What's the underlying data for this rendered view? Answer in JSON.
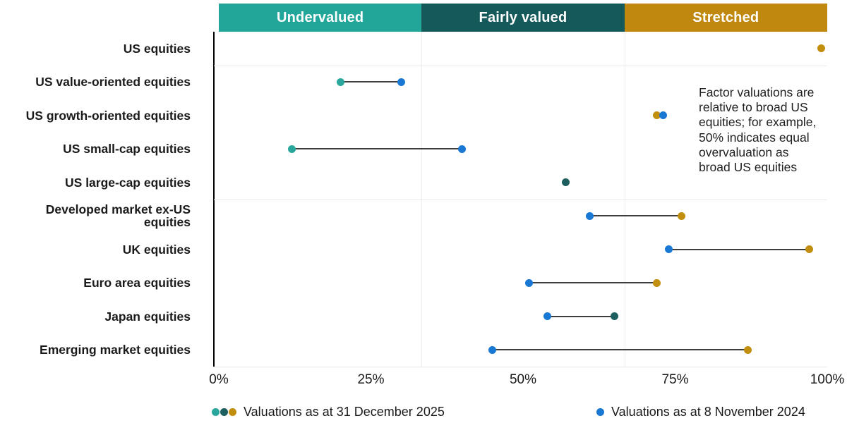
{
  "zones": [
    {
      "label": "Undervalued",
      "color": "#22A69A"
    },
    {
      "label": "Fairly valued",
      "color": "#16595A"
    },
    {
      "label": "Stretched",
      "color": "#C0880E"
    }
  ],
  "chart_data": {
    "type": "dumbbell",
    "x_ticks": [
      "0%",
      "25%",
      "50%",
      "75%",
      "100%"
    ],
    "xlim": [
      0,
      100
    ],
    "zone_boundaries": [
      33.33,
      66.67
    ],
    "group_separators_after": [
      0,
      4
    ],
    "categories": [
      "US equities",
      "US value-oriented equities",
      "US growth-oriented equities",
      "US small-cap equities",
      "US large-cap equities",
      "Developed market ex-US equities",
      "UK equities",
      "Euro area equities",
      "Japan equities",
      "Emerging market equities"
    ],
    "series": [
      {
        "name": "Valuations as at 31 December 2025",
        "values": [
          99,
          20,
          72,
          12,
          57,
          76,
          97,
          72,
          65,
          87
        ],
        "point_colors": [
          "#C28E0E",
          "#2AA79D",
          "#C28E0E",
          "#2AA79D",
          "#1D5F5E",
          "#C28E0E",
          "#C28E0E",
          "#C28E0E",
          "#1D5F5E",
          "#C28E0E"
        ]
      },
      {
        "name": "Valuations as at 8 November 2024",
        "values": [
          null,
          30,
          73,
          40,
          null,
          61,
          74,
          51,
          54,
          45
        ],
        "color": "#1878D4"
      }
    ]
  },
  "annotation": {
    "lines": [
      "Factor valuations are",
      "relative to broad US",
      "equities; for example,",
      "50% indicates equal",
      "overvaluation as",
      "broad US equities"
    ]
  },
  "legend": {
    "items": [
      {
        "label": "Valuations as at 31 December 2025",
        "swatches": [
          "#2AA79D",
          "#1D5F5E",
          "#C28E0E"
        ]
      },
      {
        "label": "Valuations as at 8 November 2024",
        "swatches": [
          "#1878D4"
        ]
      }
    ]
  }
}
